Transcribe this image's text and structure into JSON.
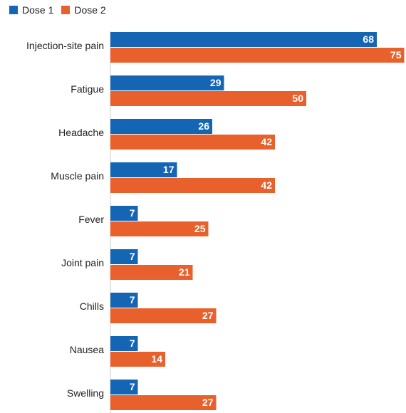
{
  "chart_data": {
    "type": "bar",
    "orientation": "horizontal",
    "legend_position": "top-left",
    "categories": [
      "Injection-site pain",
      "Fatigue",
      "Headache",
      "Muscle pain",
      "Fever",
      "Joint pain",
      "Chills",
      "Nausea",
      "Swelling"
    ],
    "series": [
      {
        "name": "Dose 1",
        "color": "#1565b5",
        "values": [
          68,
          29,
          26,
          17,
          7,
          7,
          7,
          7,
          7
        ]
      },
      {
        "name": "Dose 2",
        "color": "#e8612c",
        "values": [
          75,
          50,
          42,
          42,
          25,
          21,
          27,
          14,
          27
        ]
      }
    ],
    "xlim": [
      0,
      75
    ],
    "data_labels": true,
    "grid": false
  }
}
